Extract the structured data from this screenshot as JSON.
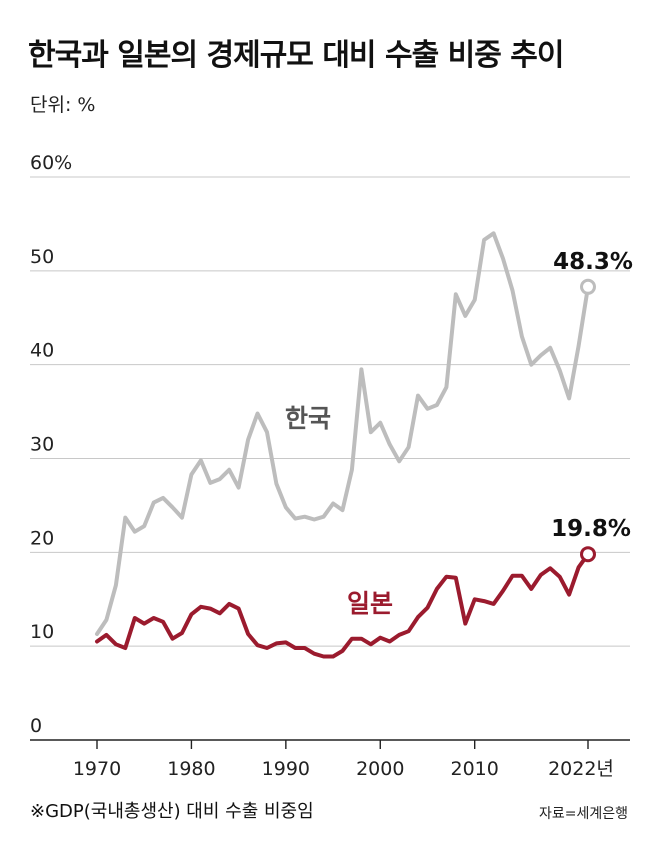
{
  "title": "한국과 일본의 경제규모 대비 수출 비중 추이",
  "unit": "단위: %",
  "footnote": "※GDP(국내총생산) 대비 수출 비중임",
  "source": "자료=세계은행",
  "colors": {
    "korea": "#bdbdbd",
    "japan": "#9b1b2e",
    "grid": "#c8c8c8",
    "axis": "#222222"
  },
  "chart_data": {
    "type": "line",
    "xlim": [
      1966,
      2026
    ],
    "ylim": [
      0,
      60
    ],
    "y_ticks": [
      {
        "value": 60,
        "label": "60%"
      },
      {
        "value": 50,
        "label": "50"
      },
      {
        "value": 40,
        "label": "40"
      },
      {
        "value": 30,
        "label": "30"
      },
      {
        "value": 20,
        "label": "20"
      },
      {
        "value": 10,
        "label": "10"
      },
      {
        "value": 0,
        "label": "0"
      }
    ],
    "x_ticks": [
      {
        "value": 1970,
        "label": "1970"
      },
      {
        "value": 1980,
        "label": "1980"
      },
      {
        "value": 1990,
        "label": "1990"
      },
      {
        "value": 2000,
        "label": "2000"
      },
      {
        "value": 2010,
        "label": "2010"
      },
      {
        "value": 2022,
        "label": "2022년"
      }
    ],
    "x": [
      1970,
      1971,
      1972,
      1973,
      1974,
      1975,
      1976,
      1977,
      1978,
      1979,
      1980,
      1981,
      1982,
      1983,
      1984,
      1985,
      1986,
      1987,
      1988,
      1989,
      1990,
      1991,
      1992,
      1993,
      1994,
      1995,
      1996,
      1997,
      1998,
      1999,
      2000,
      2001,
      2002,
      2003,
      2004,
      2005,
      2006,
      2007,
      2008,
      2009,
      2010,
      2011,
      2012,
      2013,
      2014,
      2015,
      2016,
      2017,
      2018,
      2019,
      2020,
      2021,
      2022
    ],
    "series": [
      {
        "name": "한국",
        "color": "#bdbdbd",
        "values": [
          11.3,
          12.8,
          16.5,
          23.7,
          22.2,
          22.8,
          25.3,
          25.8,
          24.8,
          23.7,
          28.3,
          29.8,
          27.4,
          27.8,
          28.8,
          26.9,
          32.0,
          34.8,
          32.8,
          27.3,
          24.8,
          23.6,
          23.8,
          23.5,
          23.8,
          25.2,
          24.5,
          28.8,
          39.5,
          32.8,
          33.8,
          31.5,
          29.7,
          31.2,
          36.7,
          35.3,
          35.7,
          37.6,
          47.5,
          45.2,
          46.9,
          53.3,
          54.0,
          51.3,
          47.9,
          43.0,
          40.0,
          41.0,
          41.8,
          39.4,
          36.4,
          42.0,
          48.3
        ],
        "end_label": "48.3%"
      },
      {
        "name": "일본",
        "color": "#9b1b2e",
        "values": [
          10.5,
          11.2,
          10.2,
          9.8,
          13.0,
          12.4,
          13.0,
          12.6,
          10.8,
          11.4,
          13.4,
          14.2,
          14.0,
          13.5,
          14.5,
          14.0,
          11.3,
          10.1,
          9.8,
          10.3,
          10.4,
          9.8,
          9.8,
          9.2,
          8.9,
          8.9,
          9.5,
          10.8,
          10.8,
          10.2,
          10.9,
          10.5,
          11.2,
          11.6,
          13.1,
          14.1,
          16.1,
          17.4,
          17.3,
          12.4,
          15.0,
          14.8,
          14.5,
          15.9,
          17.5,
          17.5,
          16.1,
          17.6,
          18.3,
          17.4,
          15.5,
          18.4,
          19.8
        ],
        "end_label": "19.8%"
      }
    ]
  }
}
